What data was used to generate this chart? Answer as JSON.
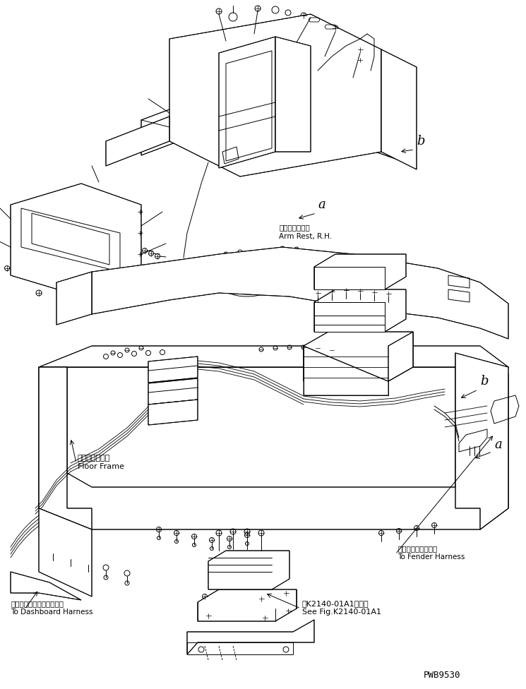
{
  "bg_color": "#ffffff",
  "line_color": "#000000",
  "lw": 0.7,
  "fig_width": 7.45,
  "fig_height": 9.76,
  "dpi": 100,
  "labels": {
    "arm_rest_jp": "アームレスト右",
    "arm_rest_en": "Arm Rest, R.H.",
    "floor_frame_jp": "フロアフレーム",
    "floor_frame_en": "Floor Frame",
    "dashboard_jp": "ダッシュボードハーネスへ",
    "dashboard_en": "To Dashboard Harness",
    "fender_jp": "フェンダハーネスへ",
    "fender_en": "To Fender Harness",
    "see_fig_jp": "第K2140-01A1図参照",
    "see_fig_en": "See Fig.K2140-01A1",
    "label_a1": "a",
    "label_b1": "b",
    "label_a2": "a",
    "label_b2": "b",
    "part_num": "PWB9530"
  }
}
